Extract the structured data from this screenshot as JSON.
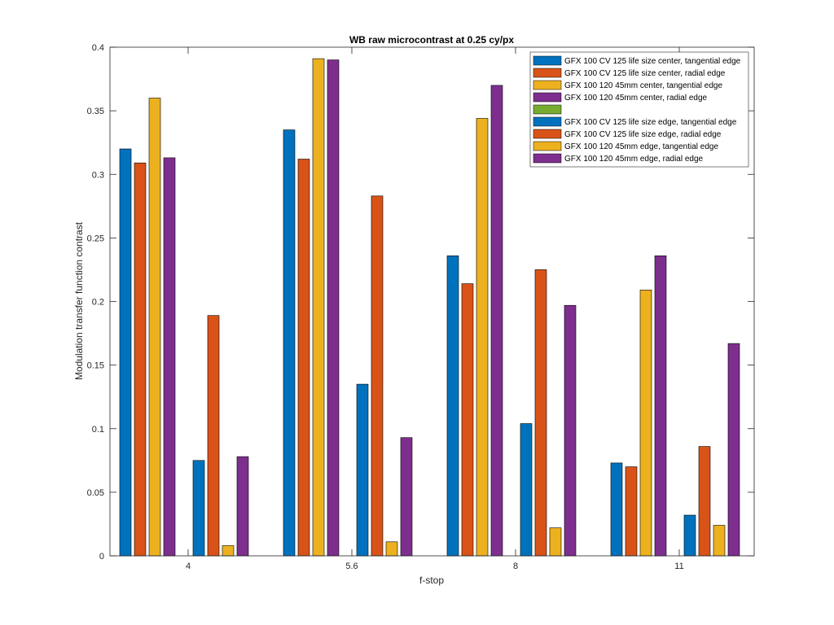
{
  "chart_data": {
    "type": "bar",
    "title": "WB raw  microcontrast at 0.25 cy/px",
    "xlabel": "f-stop",
    "ylabel": "Modulation transfer function contrast",
    "categories": [
      "4",
      "5.6",
      "8",
      "11"
    ],
    "ylim": [
      0,
      0.4
    ],
    "yticks": [
      "0",
      "0.05",
      "0.1",
      "0.15",
      "0.2",
      "0.25",
      "0.3",
      "0.35",
      "0.4"
    ],
    "legend_position": "top-right",
    "grid": false,
    "series": [
      {
        "name": "GFX 100 CV 125 life size center, tangential edge",
        "color": "#0072BD",
        "values": [
          0.32,
          0.335,
          0.236,
          0.073
        ]
      },
      {
        "name": "GFX 100 CV 125 life size center, radial edge",
        "color": "#D95319",
        "values": [
          0.309,
          0.312,
          0.214,
          0.07
        ]
      },
      {
        "name": "GFX 100 120 45mm center, tangential edge",
        "color": "#EDB120",
        "values": [
          0.36,
          0.391,
          0.344,
          0.209
        ]
      },
      {
        "name": "GFX 100 120 45mm center, radial edge",
        "color": "#7E2F8E",
        "values": [
          0.313,
          0.39,
          0.37,
          0.236
        ]
      },
      {
        "name": "",
        "color": "#77AC30",
        "values": [
          0,
          0,
          0,
          0
        ]
      },
      {
        "name": "GFX 100 CV 125 life size edge, tangential edge",
        "color": "#0072BD",
        "values": [
          0.075,
          0.135,
          0.104,
          0.032
        ]
      },
      {
        "name": "GFX 100 CV 125 life size edge, radial edge",
        "color": "#D95319",
        "values": [
          0.189,
          0.283,
          0.225,
          0.086
        ]
      },
      {
        "name": "GFX 100 120 45mm edge, tangential edge",
        "color": "#EDB120",
        "values": [
          0.008,
          0.011,
          0.022,
          0.024
        ]
      },
      {
        "name": "GFX 100 120 45mm edge, radial edge",
        "color": "#7E2F8E",
        "values": [
          0.078,
          0.093,
          0.197,
          0.167
        ]
      }
    ]
  }
}
